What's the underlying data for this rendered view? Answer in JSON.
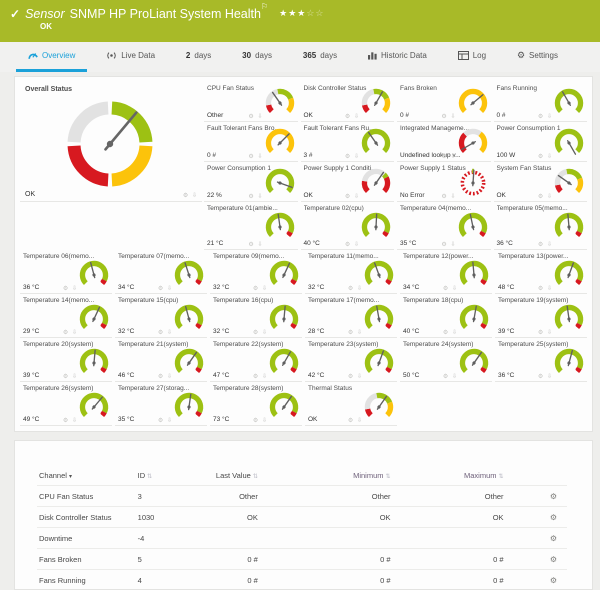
{
  "colors": {
    "header_green": "#a8ba28",
    "accent_blue": "#1ba1d9",
    "gauge_green": "#9dc113",
    "gauge_yellow": "#fcc30b",
    "gauge_red": "#d71920",
    "gauge_gray": "#e2e2e2",
    "needle": "#5f5f5f"
  },
  "header": {
    "check": "✓",
    "kind": "Sensor",
    "title": "SNMP HP ProLiant System Health",
    "flag": "⚐",
    "stars_filled": 3,
    "stars_total": 5,
    "status": "OK"
  },
  "tabs": [
    {
      "id": "overview",
      "icon": "gauge-icon",
      "label": "Overview",
      "active": true
    },
    {
      "id": "live-data",
      "icon": "live-icon",
      "label": "Live Data"
    },
    {
      "id": "2-days",
      "num": "2",
      "label": "days"
    },
    {
      "id": "30-days",
      "num": "30",
      "label": "days"
    },
    {
      "id": "365-days",
      "num": "365",
      "label": "days"
    },
    {
      "id": "historic-data",
      "icon": "chart-icon",
      "label": "Historic Data"
    },
    {
      "id": "log",
      "icon": "log-icon",
      "label": "Log"
    },
    {
      "id": "settings",
      "icon": "gear-icon",
      "label": "Settings"
    }
  ],
  "overview": {
    "overall": {
      "title": "Overall Status",
      "value": "OK",
      "needle": 40
    },
    "top_tiles": [
      {
        "title": "CPU Fan Status",
        "value": "Other",
        "arc": "status",
        "needle": -35
      },
      {
        "title": "Disk Controller Status",
        "value": "OK",
        "arc": "status",
        "needle": 30
      },
      {
        "title": "Fans Broken",
        "value": "0 #",
        "arc": "yellow",
        "needle": 50
      },
      {
        "title": "Fans Running",
        "value": "0 #",
        "arc": "green",
        "needle": -30
      },
      {
        "title": "Fault Tolerant Fans Bro...",
        "value": "0 #",
        "arc": "yellow",
        "needle": 45
      },
      {
        "title": "Fault Tolerant Fans Ru...",
        "value": "3 #",
        "arc": "green",
        "needle": -35
      },
      {
        "title": "Integrated Manageme...",
        "value": "Undefined lookup v...",
        "arc": "lookup",
        "needle": -120
      },
      {
        "title": "Power Consumption 1",
        "value": "100 W",
        "arc": "green",
        "needle": 150
      },
      {
        "title": "Power Consumption 1",
        "value": "22 %",
        "arc": "green",
        "needle": 110
      },
      {
        "title": "Power Supply 1 Conditi...",
        "value": "OK",
        "arc": "pscond",
        "needle": 35
      },
      {
        "title": "Power Supply 1 Status",
        "value": "No Error",
        "arc": "dashed",
        "needle": 4
      },
      {
        "title": "System Fan Status",
        "value": "OK",
        "arc": "status",
        "needle": -55
      }
    ],
    "temp_row": [
      {
        "title": "Temperature 01(ambie...",
        "value": "21 °C",
        "arc": "temp",
        "needle": -8
      },
      {
        "title": "Temperature 02(cpu)",
        "value": "40 °C",
        "arc": "temp",
        "needle": 3
      },
      {
        "title": "Temperature 04(memo...",
        "value": "35 °C",
        "arc": "temp",
        "needle": -12
      },
      {
        "title": "Temperature 05(memo...",
        "value": "36 °C",
        "arc": "temp",
        "needle": -5
      }
    ],
    "grid_tiles": [
      {
        "title": "Temperature 06(memo...",
        "value": "36 °C",
        "arc": "temp",
        "needle": -15
      },
      {
        "title": "Temperature 07(memo...",
        "value": "34 °C",
        "arc": "temp",
        "needle": -18
      },
      {
        "title": "Temperature 09(memo...",
        "value": "32 °C",
        "arc": "temp",
        "needle": 25
      },
      {
        "title": "Temperature 11(memo...",
        "value": "32 °C",
        "arc": "temp",
        "needle": -20
      },
      {
        "title": "Temperature 12(power...",
        "value": "34 °C",
        "arc": "temp",
        "needle": -5
      },
      {
        "title": "Temperature 13(power...",
        "value": "48 °C",
        "arc": "temp",
        "needle": 20
      },
      {
        "title": "Temperature 14(memo...",
        "value": "29 °C",
        "arc": "temp",
        "needle": 25
      },
      {
        "title": "Temperature 15(cpu)",
        "value": "32 °C",
        "arc": "temp",
        "needle": -15
      },
      {
        "title": "Temperature 16(cpu)",
        "value": "32 °C",
        "arc": "temp",
        "needle": 5
      },
      {
        "title": "Temperature 17(memo...",
        "value": "28 °C",
        "arc": "temp",
        "needle": -10
      },
      {
        "title": "Temperature 18(cpu)",
        "value": "40 °C",
        "arc": "temp",
        "needle": 10
      },
      {
        "title": "Temperature 19(system)",
        "value": "39 °C",
        "arc": "temp",
        "needle": -8
      },
      {
        "title": "Temperature 20(system)",
        "value": "39 °C",
        "arc": "temp",
        "needle": 5
      },
      {
        "title": "Temperature 21(system)",
        "value": "46 °C",
        "arc": "temp",
        "needle": 35
      },
      {
        "title": "Temperature 22(system)",
        "value": "47 °C",
        "arc": "temp",
        "needle": 30
      },
      {
        "title": "Temperature 23(system)",
        "value": "42 °C",
        "arc": "temp",
        "needle": 20
      },
      {
        "title": "Temperature 24(system)",
        "value": "50 °C",
        "arc": "temp",
        "needle": 35
      },
      {
        "title": "Temperature 25(system)",
        "value": "36 °C",
        "arc": "temp",
        "needle": 15
      },
      {
        "title": "Temperature 26(system)",
        "value": "49 °C",
        "arc": "temp",
        "needle": 40
      },
      {
        "title": "Temperature 27(storag...",
        "value": "35 °C",
        "arc": "temp",
        "needle": 8
      },
      {
        "title": "Temperature 28(system)",
        "value": "73 °C",
        "arc": "temp",
        "needle": 35
      },
      {
        "title": "Thermal Status",
        "value": "OK",
        "arc": "status",
        "needle": 35
      }
    ]
  },
  "table": {
    "headers": {
      "channel": "Channel",
      "id": "ID",
      "last_value": "Last Value",
      "minimum": "Minimum",
      "maximum": "Maximum"
    },
    "rows": [
      {
        "channel": "CPU Fan Status",
        "id": "3",
        "last": "Other",
        "min": "Other",
        "max": "Other"
      },
      {
        "channel": "Disk Controller Status",
        "id": "1030",
        "last": "OK",
        "min": "OK",
        "max": "OK"
      },
      {
        "channel": "Downtime",
        "id": "-4",
        "last": "",
        "min": "",
        "max": ""
      },
      {
        "channel": "Fans Broken",
        "id": "5",
        "last": "0 #",
        "min": "0 #",
        "max": "0 #"
      },
      {
        "channel": "Fans Running",
        "id": "4",
        "last": "0 #",
        "min": "0 #",
        "max": "0 #"
      }
    ]
  }
}
